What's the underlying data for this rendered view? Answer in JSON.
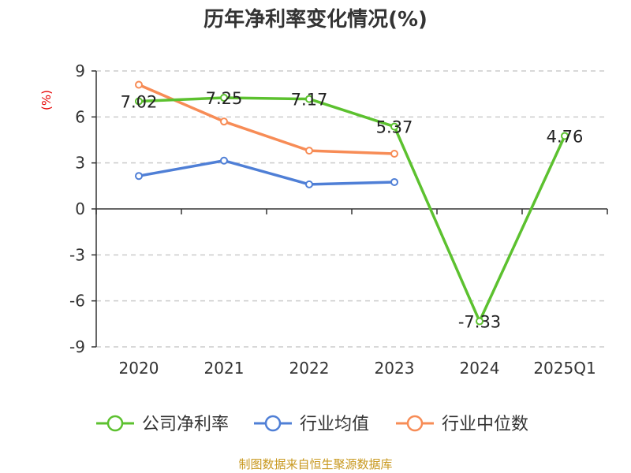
{
  "chart_data": {
    "type": "line",
    "title": "历年净利率变化情况(%)",
    "ylabel": "(%)",
    "xlabel": "",
    "categories": [
      "2020",
      "2021",
      "2022",
      "2023",
      "2024",
      "2025Q1"
    ],
    "ylim": [
      -9,
      9
    ],
    "yticks": [
      "9",
      "6",
      "3",
      "0",
      "-3",
      "-6",
      "-9"
    ],
    "grid": true,
    "legend_position": "bottom",
    "series": [
      {
        "name": "公司净利率",
        "color": "#5cc12f",
        "values": [
          7.02,
          7.25,
          7.17,
          5.37,
          -7.33,
          4.76
        ],
        "labels": [
          "7.02",
          "7.25",
          "7.17",
          "5.37",
          "-7.33",
          "4.76"
        ]
      },
      {
        "name": "行业均值",
        "color": "#4f7fd6",
        "values": [
          2.15,
          3.15,
          1.6,
          1.75,
          null,
          null
        ]
      },
      {
        "name": "行业中位数",
        "color": "#f78c56",
        "values": [
          8.1,
          5.7,
          3.8,
          3.6,
          null,
          null
        ]
      }
    ]
  },
  "source": "制图数据来自恒生聚源数据库"
}
